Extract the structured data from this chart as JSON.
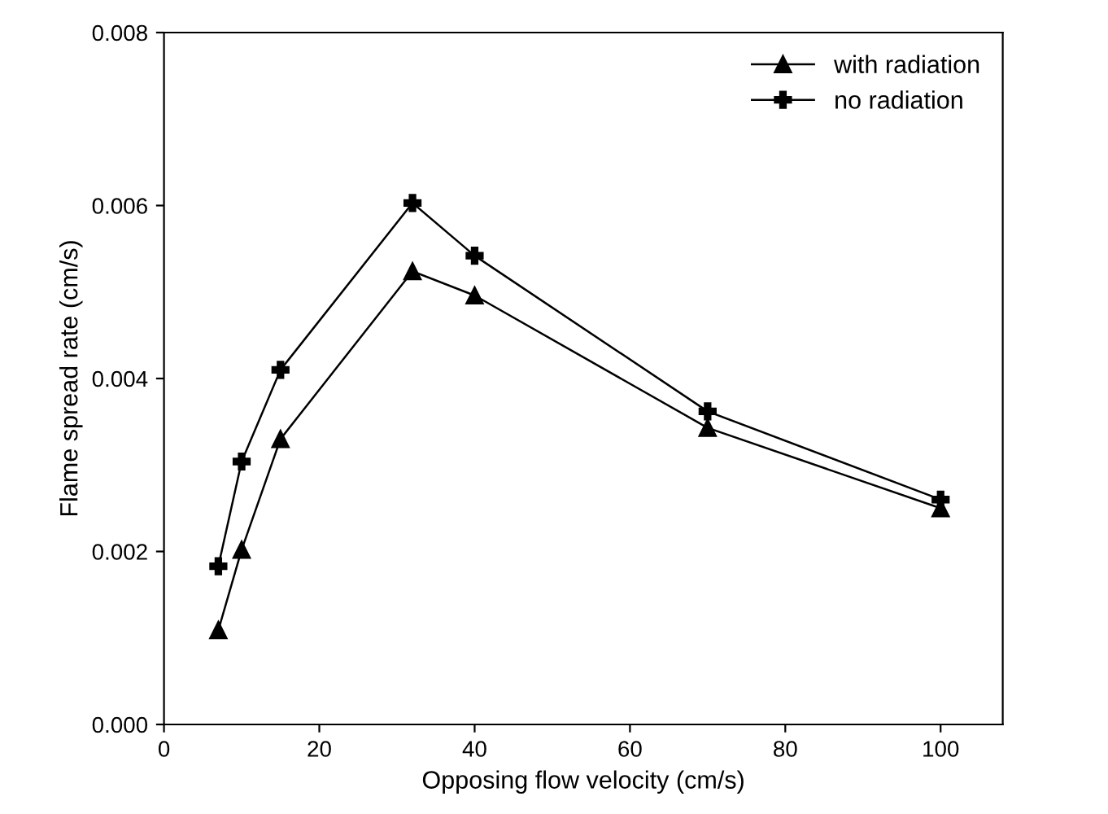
{
  "chart_data": {
    "type": "line",
    "xlabel": "Opposing flow velocity (cm/s)",
    "ylabel": "Flame spread rate (cm/s)",
    "x": [
      7,
      10,
      15,
      32,
      40,
      70,
      100
    ],
    "series": [
      {
        "name": "with radiation",
        "color": "#000000",
        "marker": "triangle",
        "values": [
          0.00109,
          0.00202,
          0.0033,
          0.00524,
          0.00496,
          0.00343,
          0.0025
        ]
      },
      {
        "name": "no radiation",
        "color": "#000000",
        "marker": "cross",
        "values": [
          0.00183,
          0.00304,
          0.0041,
          0.00603,
          0.00542,
          0.00362,
          0.0026
        ]
      }
    ],
    "xlim": [
      0,
      108
    ],
    "xticks": [
      0,
      20,
      40,
      60,
      80,
      100
    ],
    "ylim": [
      0,
      0.008
    ],
    "yticks": [
      {
        "value": 0,
        "label": "0.000"
      },
      {
        "value": 0.002,
        "label": "0.002"
      },
      {
        "value": 0.004,
        "label": "0.004"
      },
      {
        "value": 0.006,
        "label": "0.006"
      },
      {
        "value": 0.008,
        "label": "0.008"
      }
    ],
    "grid": false,
    "legend": "top right",
    "line_style": "solid"
  }
}
